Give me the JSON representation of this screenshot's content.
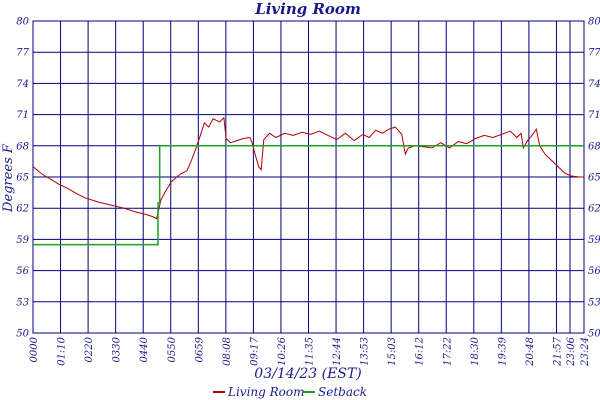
{
  "chart_data": {
    "type": "line",
    "title": "Living Room",
    "xlabel": "03/14/23 (EST)",
    "ylabel": "Degrees F",
    "ylim": [
      50,
      80
    ],
    "yticks": [
      "50",
      "53",
      "56",
      "59",
      "62",
      "65",
      "68",
      "71",
      "74",
      "77",
      "80"
    ],
    "xticks": [
      "0000",
      "01:10",
      "0220",
      "0330",
      "0440",
      "0550",
      "0659",
      "08:08",
      "09:17",
      "10:26",
      "11:35",
      "12:44",
      "13:53",
      "15:03",
      "16:12",
      "17:22",
      "18:30",
      "19:39",
      "20:48",
      "21:57",
      "23:06",
      "23:24"
    ],
    "grid": true,
    "legend_position": "bottom",
    "series": [
      {
        "name": "Living Room",
        "color": "#b00000",
        "points": [
          [
            0,
            66.0
          ],
          [
            20,
            65.3
          ],
          [
            40,
            64.8
          ],
          [
            60,
            64.3
          ],
          [
            80,
            63.9
          ],
          [
            100,
            63.4
          ],
          [
            120,
            63.0
          ],
          [
            150,
            62.6
          ],
          [
            180,
            62.3
          ],
          [
            210,
            62.0
          ],
          [
            240,
            61.6
          ],
          [
            260,
            61.4
          ],
          [
            275,
            61.2
          ],
          [
            285,
            61.0
          ],
          [
            295,
            62.8
          ],
          [
            305,
            63.6
          ],
          [
            320,
            64.6
          ],
          [
            340,
            65.3
          ],
          [
            355,
            65.6
          ],
          [
            365,
            66.6
          ],
          [
            375,
            67.7
          ],
          [
            385,
            68.9
          ],
          [
            395,
            70.2
          ],
          [
            405,
            69.8
          ],
          [
            415,
            70.6
          ],
          [
            430,
            70.3
          ],
          [
            440,
            70.7
          ],
          [
            445,
            68.7
          ],
          [
            455,
            68.3
          ],
          [
            470,
            68.5
          ],
          [
            485,
            68.7
          ],
          [
            500,
            68.8
          ],
          [
            505,
            68.3
          ],
          [
            512,
            67.2
          ],
          [
            520,
            66.0
          ],
          [
            526,
            65.7
          ],
          [
            532,
            68.6
          ],
          [
            545,
            69.2
          ],
          [
            560,
            68.8
          ],
          [
            580,
            69.2
          ],
          [
            600,
            69.0
          ],
          [
            620,
            69.3
          ],
          [
            640,
            69.1
          ],
          [
            660,
            69.4
          ],
          [
            680,
            69.0
          ],
          [
            700,
            68.6
          ],
          [
            720,
            69.2
          ],
          [
            740,
            68.5
          ],
          [
            760,
            69.1
          ],
          [
            775,
            68.8
          ],
          [
            790,
            69.5
          ],
          [
            805,
            69.2
          ],
          [
            820,
            69.6
          ],
          [
            835,
            69.8
          ],
          [
            850,
            69.1
          ],
          [
            858,
            67.2
          ],
          [
            865,
            67.8
          ],
          [
            880,
            68.0
          ],
          [
            900,
            67.9
          ],
          [
            920,
            67.8
          ],
          [
            940,
            68.3
          ],
          [
            960,
            67.8
          ],
          [
            980,
            68.4
          ],
          [
            1000,
            68.2
          ],
          [
            1020,
            68.7
          ],
          [
            1040,
            69.0
          ],
          [
            1060,
            68.8
          ],
          [
            1080,
            69.1
          ],
          [
            1100,
            69.4
          ],
          [
            1115,
            68.8
          ],
          [
            1125,
            69.2
          ],
          [
            1130,
            67.8
          ],
          [
            1140,
            68.5
          ],
          [
            1150,
            69.0
          ],
          [
            1160,
            69.6
          ],
          [
            1168,
            68.0
          ],
          [
            1180,
            67.2
          ],
          [
            1195,
            66.6
          ],
          [
            1210,
            66.0
          ],
          [
            1225,
            65.4
          ],
          [
            1240,
            65.1
          ],
          [
            1260,
            65.0
          ],
          [
            1270,
            65.0
          ]
        ]
      },
      {
        "name": "Setback",
        "color": "#20a020",
        "points": [
          [
            0,
            58.5
          ],
          [
            288,
            58.5
          ],
          [
            288,
            62.5
          ],
          [
            292,
            62.5
          ],
          [
            292,
            68.0
          ],
          [
            1270,
            68.0
          ]
        ]
      }
    ]
  }
}
